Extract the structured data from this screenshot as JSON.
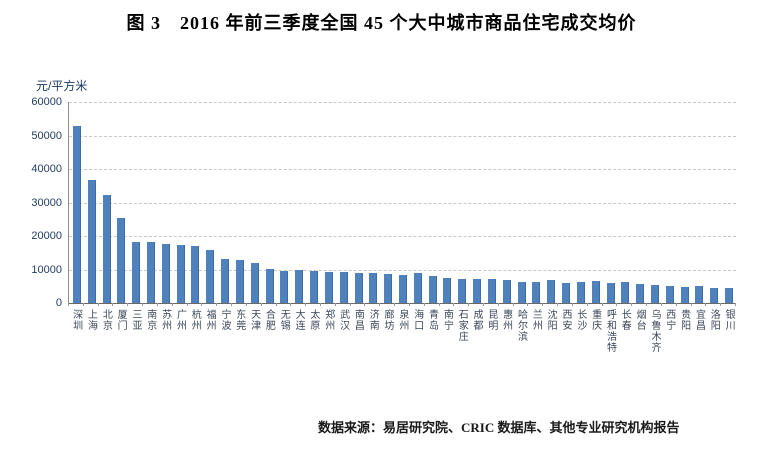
{
  "title": "图 3　2016 年前三季度全国 45 个大中城市商品住宅成交均价",
  "source_note": "数据来源：易居研究院、CRIC 数据库、其他专业研究机构报告",
  "colors": {
    "bar": "#4F81BD",
    "bar_border": "#3f6da3",
    "gridline": "#c8c8c8",
    "axis": "#696969",
    "y_label_text": "#1f3a5f",
    "x_label_text": "#3c4757",
    "title_text": "#000000"
  },
  "chart_data": {
    "type": "bar",
    "title": "图 3　2016 年前三季度全国 45 个大中城市商品住宅成交均价",
    "unit_label": "元/平方米",
    "xlabel": "",
    "ylabel": "元/平方米",
    "ylim": [
      0,
      60000
    ],
    "ytick_interval": 10000,
    "yticks": [
      0,
      10000,
      20000,
      30000,
      40000,
      50000,
      60000
    ],
    "grid": "horizontal-dashed",
    "legend": "none",
    "categories": [
      "深圳",
      "上海",
      "北京",
      "厦门",
      "三亚",
      "南京",
      "苏州",
      "广州",
      "杭州",
      "福州",
      "宁波",
      "东莞",
      "天津",
      "合肥",
      "无锡",
      "大连",
      "太原",
      "郑州",
      "武汉",
      "南昌",
      "济南",
      "廊坊",
      "泉州",
      "海口",
      "青岛",
      "南宁",
      "石家庄",
      "成都",
      "昆明",
      "惠州",
      "哈尔滨",
      "兰州",
      "沈阳",
      "西安",
      "长沙",
      "重庆",
      "呼和浩特",
      "长春",
      "烟台",
      "乌鲁木齐",
      "西宁",
      "贵阳",
      "宜昌",
      "洛阳",
      "银川"
    ],
    "values": [
      52700,
      36700,
      32100,
      25300,
      18200,
      18100,
      17700,
      17400,
      17000,
      15900,
      13200,
      12900,
      11900,
      10100,
      9600,
      9900,
      9500,
      9300,
      9200,
      9000,
      8900,
      8700,
      8500,
      9000,
      8200,
      7400,
      7100,
      7200,
      7200,
      6800,
      6400,
      6400,
      6900,
      5900,
      6300,
      6700,
      6000,
      6200,
      5700,
      5400,
      5100,
      4900,
      5100,
      4400,
      4400
    ]
  }
}
